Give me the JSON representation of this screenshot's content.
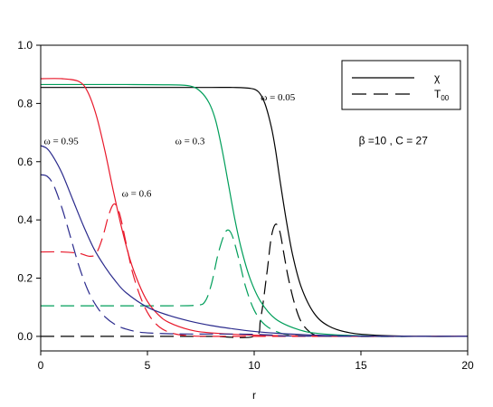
{
  "chart_data": {
    "type": "line",
    "xlabel": "r",
    "ylabel": "",
    "xlim": [
      0,
      20
    ],
    "ylim": [
      -0.05,
      1.0
    ],
    "x_ticks": [
      "0",
      "5",
      "10",
      "15",
      "20"
    ],
    "y_ticks": [
      "0.0",
      "0.2",
      "0.4",
      "0.6",
      "0.8",
      "1.0"
    ],
    "grid": false,
    "legend": {
      "position": "top-right",
      "entries": [
        {
          "label": "χ",
          "style": "solid"
        },
        {
          "label": "T",
          "sub": "00",
          "style": "dashed"
        }
      ]
    },
    "annotations": [
      {
        "text": "ω = 0.05",
        "x": 10.3,
        "y": 0.81
      },
      {
        "text": "ω = 0.3",
        "x": 6.3,
        "y": 0.66
      },
      {
        "text": "ω = 0.95",
        "x": 0.15,
        "y": 0.66
      },
      {
        "text": "ω = 0.6",
        "x": 3.8,
        "y": 0.48
      },
      {
        "text": "β =10 , C = 27",
        "x": 14.9,
        "y": 0.66
      }
    ],
    "series": [
      {
        "color": "#000000",
        "style": "solid",
        "omega": "0.05",
        "x": [
          0,
          2,
          4,
          6,
          8,
          9,
          9.8,
          10.2,
          10.5,
          10.8,
          11.0,
          11.2,
          11.5,
          11.8,
          12.2,
          12.8,
          13.5,
          14.5,
          16,
          18,
          20
        ],
        "y": [
          0.855,
          0.855,
          0.855,
          0.855,
          0.855,
          0.855,
          0.852,
          0.84,
          0.8,
          0.72,
          0.64,
          0.54,
          0.4,
          0.28,
          0.17,
          0.08,
          0.035,
          0.012,
          0.003,
          0.0,
          0.0
        ]
      },
      {
        "color": "#000000",
        "style": "dashed",
        "omega": "0.05",
        "x": [
          0,
          2,
          4,
          6,
          8,
          10,
          10.3,
          10.6,
          10.8,
          11.0,
          11.2,
          11.4,
          11.6,
          11.9,
          12.2,
          12.6,
          13.0,
          14,
          20
        ],
        "y": [
          0.0,
          0.0,
          0.0,
          0.0,
          0.0,
          0.0,
          0.06,
          0.22,
          0.34,
          0.385,
          0.36,
          0.28,
          0.2,
          0.11,
          0.05,
          0.015,
          0.003,
          0.0,
          0.0
        ]
      },
      {
        "color": "#009e5a",
        "style": "solid",
        "omega": "0.3",
        "x": [
          0,
          2,
          4,
          6,
          7,
          7.5,
          7.9,
          8.2,
          8.5,
          8.8,
          9.1,
          9.4,
          9.8,
          10.3,
          11,
          12,
          13,
          15,
          18,
          20
        ],
        "y": [
          0.865,
          0.865,
          0.865,
          0.864,
          0.86,
          0.84,
          0.8,
          0.74,
          0.64,
          0.52,
          0.4,
          0.3,
          0.2,
          0.12,
          0.06,
          0.025,
          0.01,
          0.002,
          0.0,
          0.0
        ]
      },
      {
        "color": "#009e5a",
        "style": "dashed",
        "omega": "0.3",
        "x": [
          0,
          2,
          4,
          6,
          7.3,
          7.7,
          8.0,
          8.3,
          8.6,
          8.8,
          9.0,
          9.3,
          9.6,
          10.0,
          10.5,
          11.2,
          12,
          14,
          20
        ],
        "y": [
          0.105,
          0.105,
          0.105,
          0.105,
          0.107,
          0.12,
          0.18,
          0.28,
          0.35,
          0.365,
          0.34,
          0.26,
          0.17,
          0.09,
          0.04,
          0.012,
          0.003,
          0.0,
          0.0
        ]
      },
      {
        "color": "#e8182a",
        "style": "solid",
        "omega": "0.6",
        "x": [
          0,
          1,
          1.8,
          2.2,
          2.6,
          3.0,
          3.4,
          3.8,
          4.2,
          4.6,
          5.0,
          5.5,
          6.0,
          7,
          8,
          10,
          13,
          16,
          20
        ],
        "y": [
          0.885,
          0.885,
          0.875,
          0.84,
          0.76,
          0.64,
          0.5,
          0.37,
          0.26,
          0.18,
          0.12,
          0.075,
          0.048,
          0.022,
          0.012,
          0.004,
          0.001,
          0.0,
          0.0
        ]
      },
      {
        "color": "#e8182a",
        "style": "dashed",
        "omega": "0.6",
        "x": [
          0,
          1,
          1.8,
          2.3,
          2.6,
          2.9,
          3.2,
          3.45,
          3.7,
          4.0,
          4.3,
          4.7,
          5.1,
          5.6,
          6.2,
          7,
          9,
          20
        ],
        "y": [
          0.29,
          0.29,
          0.285,
          0.275,
          0.285,
          0.34,
          0.42,
          0.455,
          0.42,
          0.32,
          0.22,
          0.13,
          0.07,
          0.03,
          0.01,
          0.002,
          0.0,
          0.0
        ]
      },
      {
        "color": "#2a2a8c",
        "style": "solid",
        "omega": "0.95",
        "x": [
          0,
          0.3,
          0.6,
          1.0,
          1.5,
          2.0,
          2.5,
          3.0,
          3.5,
          4.0,
          5.0,
          6.0,
          7.0,
          8.0,
          9.0,
          10.0,
          11.0,
          12.0,
          14,
          17,
          20
        ],
        "y": [
          0.655,
          0.645,
          0.615,
          0.56,
          0.47,
          0.38,
          0.3,
          0.24,
          0.19,
          0.15,
          0.1,
          0.072,
          0.052,
          0.037,
          0.026,
          0.017,
          0.011,
          0.007,
          0.002,
          0.0,
          0.0
        ]
      },
      {
        "color": "#2a2a8c",
        "style": "dashed",
        "omega": "0.95",
        "x": [
          0,
          0.3,
          0.6,
          1.0,
          1.4,
          1.8,
          2.2,
          2.6,
          3.0,
          3.5,
          4.0,
          4.5,
          5.0,
          6.0,
          7.0,
          8.0,
          9.0,
          10.0,
          11.0,
          12.0,
          20
        ],
        "y": [
          0.555,
          0.55,
          0.52,
          0.44,
          0.34,
          0.24,
          0.16,
          0.105,
          0.068,
          0.04,
          0.025,
          0.016,
          0.012,
          0.009,
          0.008,
          0.008,
          0.008,
          0.007,
          0.004,
          0.001,
          0.0
        ]
      }
    ]
  }
}
